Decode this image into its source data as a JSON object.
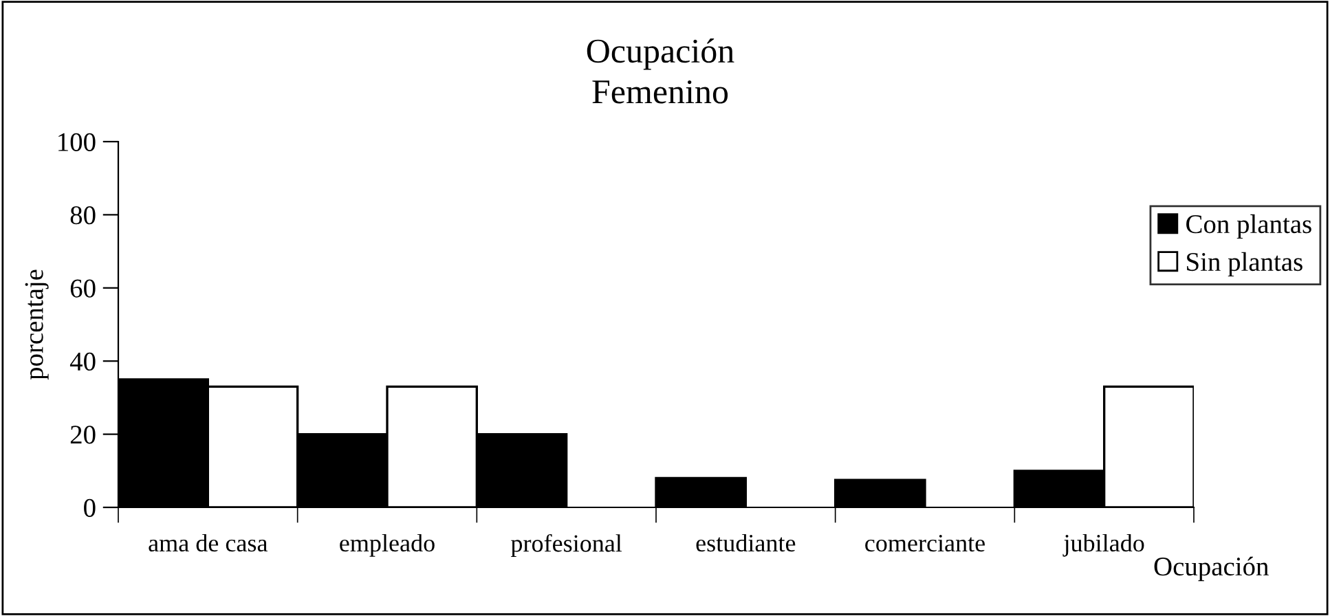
{
  "chart_data": {
    "type": "bar",
    "title": "Ocupación\nFemenino",
    "xlabel": "Ocupación",
    "ylabel": "porcentaje",
    "categories": [
      "ama de casa",
      "empleado",
      "profesional",
      "estudiante",
      "comerciante",
      "jubilado"
    ],
    "series": [
      {
        "name": "Con plantas",
        "color": "#000000",
        "values": [
          35,
          20,
          20,
          8,
          7.5,
          10
        ]
      },
      {
        "name": "Sin plantas",
        "color": "#ffffff",
        "values": [
          33,
          33,
          null,
          null,
          null,
          33
        ]
      }
    ],
    "ylim": [
      0,
      100
    ],
    "yticks": [
      0,
      20,
      40,
      60,
      80,
      100
    ],
    "grid": false,
    "legend": "top right"
  }
}
